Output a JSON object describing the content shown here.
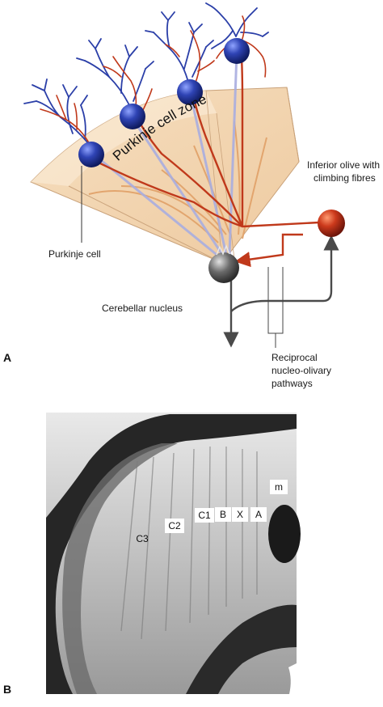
{
  "panel_a": {
    "letter": "A",
    "zone_label": "Purkinje cell zone",
    "purkinje_cell_label": "Purkinje cell",
    "cerebellar_nucleus_label": "Cerebellar nucleus",
    "inferior_olive_label_line1": "Inferior olive with",
    "inferior_olive_label_line2": "climbing fibres",
    "reciprocal_label_line1": "Reciprocal",
    "reciprocal_label_line2": "nucleo-olivary",
    "reciprocal_label_line3": "pathways",
    "colors": {
      "purkinje_cell": "#2b3fa8",
      "climbing_fibre": "#c0391b",
      "olive_cell": "#c8391e",
      "nucleus_cell": "#555555",
      "zone_fill": "#f3d7b2",
      "axon": "#a9aee0"
    }
  },
  "panel_b": {
    "letter": "B",
    "zone_labels": [
      "m",
      "A",
      "X",
      "B",
      "C1",
      "C2",
      "C3"
    ]
  }
}
